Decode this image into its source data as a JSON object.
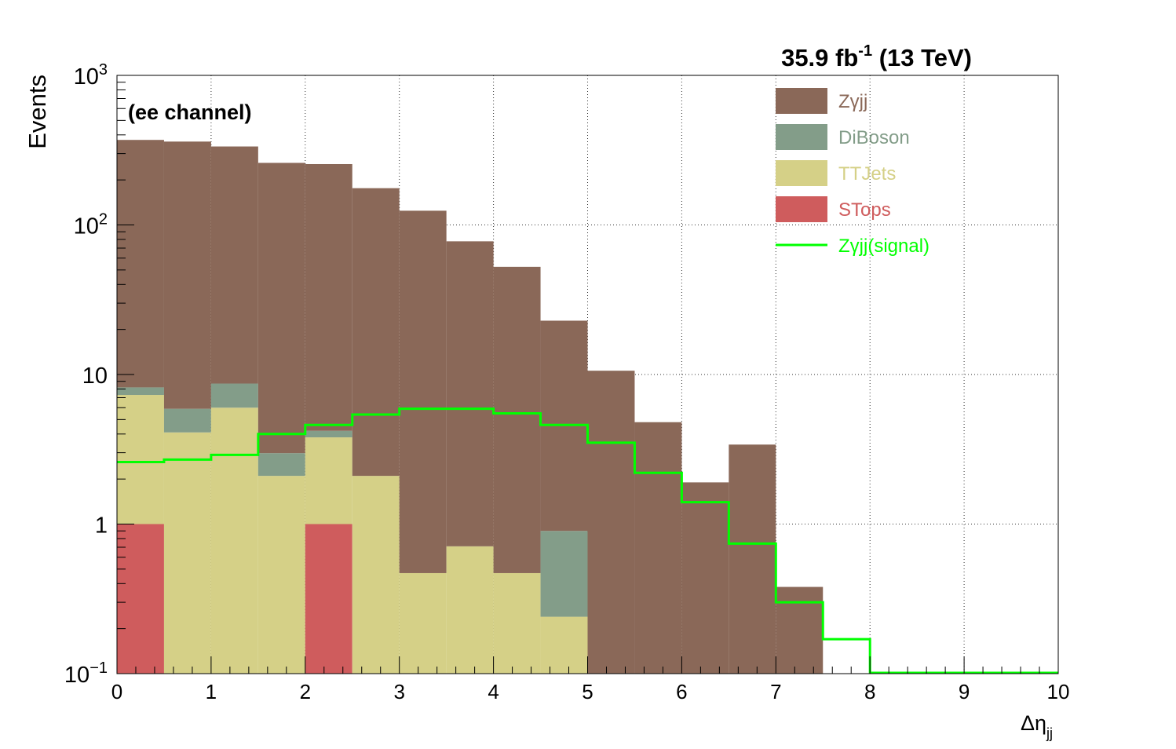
{
  "chart_data": {
    "type": "bar",
    "stacked": true,
    "log_y": true,
    "title": "35.9 fb-1 (13 TeV)",
    "title_parts": {
      "lumi": "35.9 fb",
      "exp": "-1",
      "rest": " (13 TeV)"
    },
    "annotation": "(ee channel)",
    "xlabel": {
      "main": "Δη",
      "sub": "jj"
    },
    "ylabel": "Events",
    "xlim": [
      0,
      10
    ],
    "ylim": [
      0.1,
      1000
    ],
    "grid": true,
    "legend_position": "top-right",
    "x_ticks": [
      "0",
      "1",
      "2",
      "3",
      "4",
      "5",
      "6",
      "7",
      "8",
      "9",
      "10"
    ],
    "y_ticks": [
      {
        "value": 0.1,
        "base": "10",
        "exp": "−1"
      },
      {
        "value": 1,
        "base": "1",
        "exp": ""
      },
      {
        "value": 10,
        "base": "10",
        "exp": ""
      },
      {
        "value": 100,
        "base": "10",
        "exp": "2"
      },
      {
        "value": 1000,
        "base": "10",
        "exp": "3"
      }
    ],
    "bin_edges": [
      0,
      0.5,
      1,
      1.5,
      2,
      2.5,
      3,
      3.5,
      4,
      4.5,
      5,
      5.5,
      6,
      6.5,
      7,
      7.5,
      8,
      8.5,
      9,
      9.5,
      10
    ],
    "stack_order": [
      "STops",
      "TTJets",
      "DiBoson",
      "Zγjj"
    ],
    "series": [
      {
        "name": "Zγjj",
        "color": "#8a6858",
        "values": [
          362,
          355,
          326,
          257,
          251,
          174,
          124,
          77,
          52,
          22,
          10.6,
          4.8,
          1.9,
          3.4,
          0.38,
          0,
          0,
          0,
          0,
          0
        ]
      },
      {
        "name": "DiBoson",
        "color": "#839d89",
        "values": [
          0.9,
          1.8,
          2.7,
          0.88,
          0.4,
          0,
          0,
          0,
          0,
          0.66,
          0,
          0,
          0,
          0,
          0,
          0,
          0,
          0,
          0,
          0
        ]
      },
      {
        "name": "TTJets",
        "color": "#d5d087",
        "values": [
          6.3,
          4.1,
          6.0,
          2.1,
          2.8,
          2.1,
          0.47,
          0.71,
          0.47,
          0.24,
          0,
          0,
          0,
          0,
          0,
          0,
          0,
          0,
          0,
          0
        ]
      },
      {
        "name": "STops",
        "color": "#cf5c5d",
        "values": [
          1.0,
          0,
          0,
          0,
          1.0,
          0,
          0,
          0,
          0,
          0,
          0,
          0,
          0,
          0,
          0,
          0,
          0,
          0,
          0,
          0
        ]
      }
    ],
    "signal": {
      "name": "Zγjj(signal)",
      "color": "#00ff00",
      "values": [
        2.6,
        2.7,
        2.9,
        4.0,
        4.6,
        5.4,
        5.9,
        5.9,
        5.5,
        4.6,
        3.5,
        2.2,
        1.4,
        0.74,
        0.3,
        0.17,
        0.1,
        0.1,
        0.1,
        0.1
      ]
    },
    "legend": [
      {
        "label": "Zγjj",
        "kind": "box",
        "color": "#8a6858"
      },
      {
        "label": "DiBoson",
        "kind": "box",
        "color": "#839d89"
      },
      {
        "label": "TTJets",
        "kind": "box",
        "color": "#d5d087"
      },
      {
        "label": "STops",
        "kind": "box",
        "color": "#cf5c5d"
      },
      {
        "label": "Zγjj(signal)",
        "kind": "line",
        "color": "#00ff00"
      }
    ]
  }
}
